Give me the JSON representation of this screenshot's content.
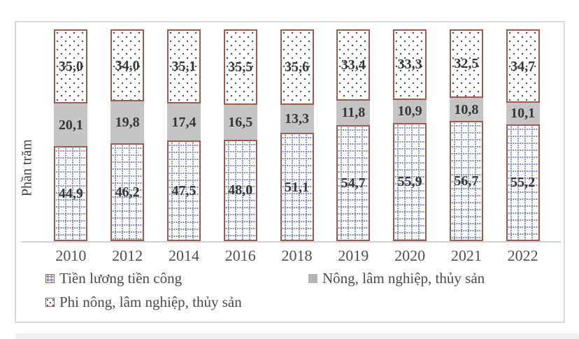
{
  "chart_data": {
    "type": "bar",
    "stacked": true,
    "orientation": "vertical",
    "title": "",
    "xlabel": "",
    "ylabel": "Phần trăm",
    "ylim": [
      0,
      100
    ],
    "unit": "percent",
    "decimal_separator": ",",
    "grid": false,
    "legend_position": "bottom",
    "categories": [
      "2010",
      "2012",
      "2014",
      "2016",
      "2018",
      "2019",
      "2020",
      "2021",
      "2022"
    ],
    "series": [
      {
        "name": "Tiền lương tiền công",
        "pattern": "dotted-grid",
        "border_color": "#9c5a50",
        "pattern_color": "#7080a8",
        "values": [
          44.9,
          46.2,
          47.5,
          48.0,
          51.1,
          54.7,
          55.9,
          56.7,
          55.2
        ],
        "display_labels": [
          "44,9",
          "46,2",
          "47,5",
          "48,0",
          "51,1",
          "54,7",
          "55,9",
          "56,7",
          "55,2"
        ]
      },
      {
        "name": "Nông, lâm nghiệp, thủy sản",
        "pattern": "solid-gray",
        "fill_color": "#c6c5c5",
        "values": [
          20.1,
          19.8,
          17.4,
          16.5,
          13.3,
          11.8,
          10.9,
          10.8,
          10.1
        ],
        "display_labels": [
          "20,1",
          "19,8",
          "17,4",
          "16,5",
          "13,3",
          "11,8",
          "10,9",
          "10,8",
          "10,1"
        ]
      },
      {
        "name": "Phi nông, lâm nghiệp, thủy sản",
        "pattern": "sparse-dots",
        "border_color": "#9c5a50",
        "pattern_color": "#4a4e57",
        "values": [
          35.0,
          34.0,
          35.1,
          35.5,
          35.6,
          33.4,
          33.3,
          32.5,
          34.7
        ],
        "display_labels": [
          "35,0",
          "34,0",
          "35,1",
          "35,5",
          "35,6",
          "33,4",
          "33,3",
          "32,5",
          "34,7"
        ]
      }
    ]
  },
  "colors": {
    "frame_border": "#d9d9d9",
    "axis_line": "#d2d0d0",
    "bar_border": "#9c5a50",
    "gray_fill": "#c6c5c5",
    "grid_pattern": "#7080a8",
    "dot_pattern": "#4a4e57",
    "value_text": "#363636",
    "axis_text": "#4f4f4f",
    "bottom_strip": "#efeff0"
  }
}
